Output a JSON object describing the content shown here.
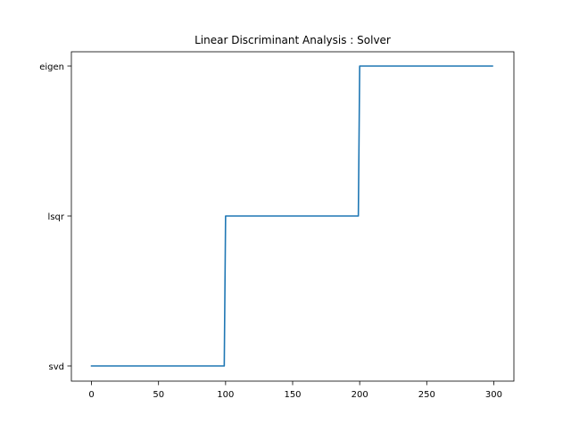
{
  "chart_data": {
    "type": "line",
    "title": "Linear Discriminant Analysis : Solver",
    "xlabel": "",
    "ylabel": "",
    "xlim": [
      -15,
      315
    ],
    "x_ticks": [
      0,
      50,
      100,
      150,
      200,
      250,
      300
    ],
    "y_categories": [
      "svd",
      "lsqr",
      "eigen"
    ],
    "grid": false,
    "legend": "none",
    "series": [
      {
        "color": "#1f77b4",
        "points": [
          {
            "x": 0,
            "y": "svd"
          },
          {
            "x": 99,
            "y": "svd"
          },
          {
            "x": 100,
            "y": "lsqr"
          },
          {
            "x": 199,
            "y": "lsqr"
          },
          {
            "x": 200,
            "y": "eigen"
          },
          {
            "x": 299,
            "y": "eigen"
          }
        ]
      }
    ]
  }
}
